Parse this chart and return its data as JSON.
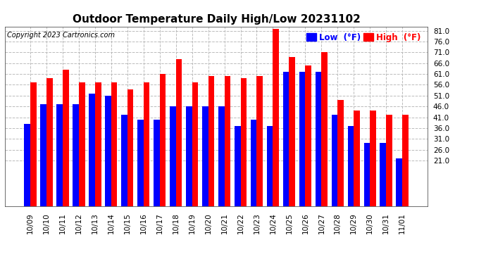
{
  "title": "Outdoor Temperature Daily High/Low 20231102",
  "copyright": "Copyright 2023 Cartronics.com",
  "dates": [
    "10/09",
    "10/10",
    "10/11",
    "10/12",
    "10/13",
    "10/14",
    "10/15",
    "10/16",
    "10/17",
    "10/18",
    "10/19",
    "10/20",
    "10/21",
    "10/22",
    "10/23",
    "10/24",
    "10/25",
    "10/26",
    "10/27",
    "10/28",
    "10/29",
    "10/30",
    "10/31",
    "11/01"
  ],
  "high": [
    57,
    59,
    63,
    57,
    57,
    57,
    54,
    57,
    61,
    68,
    57,
    60,
    60,
    59,
    60,
    82,
    69,
    65,
    71,
    49,
    44,
    44,
    42,
    42
  ],
  "low": [
    38,
    47,
    47,
    47,
    52,
    51,
    42,
    40,
    40,
    46,
    46,
    46,
    46,
    37,
    40,
    37,
    62,
    62,
    62,
    42,
    37,
    29,
    29,
    22
  ],
  "ylim_low": 0,
  "ylim_high": 83.0,
  "yticks": [
    21.0,
    26.0,
    31.0,
    36.0,
    41.0,
    46.0,
    51.0,
    56.0,
    61.0,
    66.0,
    71.0,
    76.0,
    81.0
  ],
  "high_color": "#ff0000",
  "low_color": "#0000ff",
  "bg_color": "#ffffff",
  "grid_color": "#bbbbbb",
  "title_fontsize": 11,
  "copyright_fontsize": 7,
  "tick_fontsize": 7.5,
  "bar_width": 0.38,
  "legend_low": "Low  (°F)",
  "legend_high": "High  (°F)"
}
